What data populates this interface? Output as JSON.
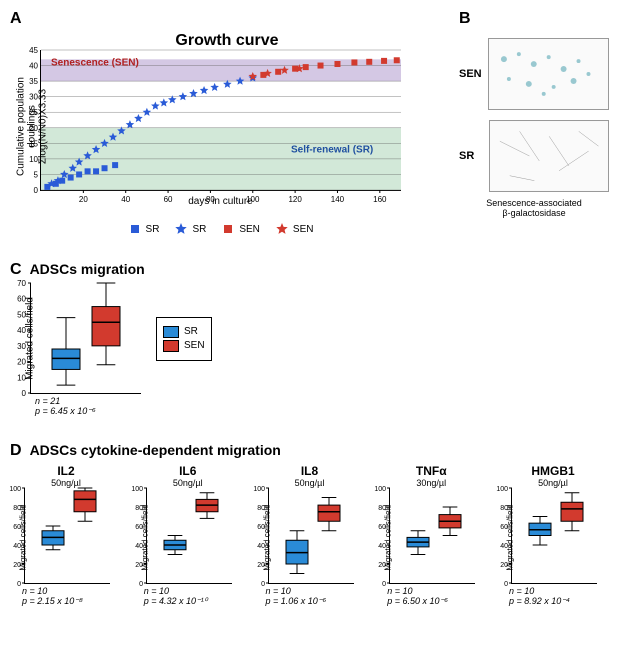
{
  "panelA": {
    "label": "A",
    "title": "Growth curve",
    "ylabel": "Cumulative population doublings\nΣlog(N/N0)X3.33",
    "xlabel": "days in culture",
    "xlim": [
      0,
      170
    ],
    "xtick_step": 20,
    "ylim": [
      0,
      45
    ],
    "ytick_step": 5,
    "sen_band": [
      35,
      42
    ],
    "sen_band_color": "#d4c8e4",
    "sr_band": [
      0,
      20
    ],
    "sr_band_color": "#d2e8d8",
    "sen_label": "Senescence (SEN)",
    "sr_label": "Self-renewal (SR)",
    "gridline_color": "#666666",
    "series": {
      "sr_square": {
        "color": "#2a5bd7",
        "label": "SR",
        "shape": "square",
        "points": [
          [
            3,
            1
          ],
          [
            7,
            2
          ],
          [
            10,
            3
          ],
          [
            14,
            4
          ],
          [
            18,
            5
          ],
          [
            22,
            6
          ],
          [
            26,
            6
          ],
          [
            30,
            7
          ],
          [
            35,
            8
          ]
        ]
      },
      "sr_star": {
        "color": "#2a5bd7",
        "label": "SR",
        "shape": "star",
        "points": [
          [
            5,
            2
          ],
          [
            8,
            3
          ],
          [
            11,
            5
          ],
          [
            15,
            7
          ],
          [
            18,
            9
          ],
          [
            22,
            11
          ],
          [
            26,
            13
          ],
          [
            30,
            15
          ],
          [
            34,
            17
          ],
          [
            38,
            19
          ],
          [
            42,
            21
          ],
          [
            46,
            23
          ],
          [
            50,
            25
          ],
          [
            54,
            27
          ],
          [
            58,
            28
          ],
          [
            62,
            29
          ],
          [
            67,
            30
          ],
          [
            72,
            31
          ],
          [
            77,
            32
          ],
          [
            82,
            33
          ],
          [
            88,
            34
          ],
          [
            94,
            35
          ],
          [
            100,
            36
          ]
        ]
      },
      "sen_square": {
        "color": "#d23a2e",
        "label": "SEN",
        "shape": "square",
        "points": [
          [
            105,
            37
          ],
          [
            112,
            38
          ],
          [
            120,
            39
          ],
          [
            125,
            39.5
          ],
          [
            132,
            40
          ],
          [
            140,
            40.5
          ],
          [
            148,
            41
          ],
          [
            155,
            41.2
          ],
          [
            162,
            41.5
          ],
          [
            168,
            41.7
          ]
        ]
      },
      "sen_star": {
        "color": "#d23a2e",
        "label": "SEN",
        "shape": "star",
        "points": [
          [
            100,
            36.5
          ],
          [
            107,
            37.5
          ],
          [
            115,
            38.5
          ],
          [
            122,
            39
          ]
        ]
      }
    },
    "legend": [
      {
        "shape": "square",
        "color": "#2a5bd7",
        "text": "SR"
      },
      {
        "shape": "star",
        "color": "#2a5bd7",
        "text": "SR"
      },
      {
        "shape": "square",
        "color": "#d23a2e",
        "text": "SEN"
      },
      {
        "shape": "star",
        "color": "#d23a2e",
        "text": "SEN"
      }
    ]
  },
  "panelB": {
    "label": "B",
    "images": [
      {
        "tag": "SEN"
      },
      {
        "tag": "SR"
      }
    ],
    "caption": "Senescence-associated\nβ-galactosidase"
  },
  "panelC": {
    "label": "C",
    "title": "ADSCs migration",
    "ylabel": "Migrated cells/field",
    "ylim": [
      0,
      70
    ],
    "ytick_step": 10,
    "boxes": [
      {
        "name": "SR",
        "color": "#2a8bd7",
        "q1": 15,
        "med": 22,
        "q3": 28,
        "min": 5,
        "max": 48
      },
      {
        "name": "SEN",
        "color": "#d23a2e",
        "q1": 30,
        "med": 45,
        "q3": 55,
        "min": 18,
        "max": 70
      }
    ],
    "legend": [
      {
        "color": "#2a8bd7",
        "text": "SR"
      },
      {
        "color": "#d23a2e",
        "text": "SEN"
      }
    ],
    "n": "n = 21",
    "p": "p = 6.45 x 10⁻⁶"
  },
  "panelD": {
    "label": "D",
    "title": "ADSCs cytokine-dependent migration",
    "ylabel": "Migrated cells/field",
    "ylim": [
      0,
      100
    ],
    "ytick_step": 20,
    "items": [
      {
        "name": "IL2",
        "dose": "50ng/µl",
        "n": "n = 10",
        "p": "p = 2.15 x 10⁻⁸",
        "sr": {
          "q1": 40,
          "med": 48,
          "q3": 55,
          "min": 35,
          "max": 60
        },
        "sen": {
          "q1": 75,
          "med": 88,
          "q3": 97,
          "min": 65,
          "max": 100
        }
      },
      {
        "name": "IL6",
        "dose": "50ng/µl",
        "n": "n = 10",
        "p": "p = 4.32 x 10⁻¹⁰",
        "sr": {
          "q1": 35,
          "med": 40,
          "q3": 45,
          "min": 30,
          "max": 50
        },
        "sen": {
          "q1": 75,
          "med": 82,
          "q3": 88,
          "min": 68,
          "max": 95
        }
      },
      {
        "name": "IL8",
        "dose": "50ng/µl",
        "n": "n = 10",
        "p": "p = 1.06 x 10⁻⁶",
        "sr": {
          "q1": 20,
          "med": 32,
          "q3": 45,
          "min": 10,
          "max": 55
        },
        "sen": {
          "q1": 65,
          "med": 75,
          "q3": 82,
          "min": 55,
          "max": 90
        }
      },
      {
        "name": "TNFα",
        "dose": "30ng/µl",
        "n": "n = 10",
        "p": "p = 6.50 x 10⁻⁶",
        "sr": {
          "q1": 38,
          "med": 43,
          "q3": 48,
          "min": 30,
          "max": 55
        },
        "sen": {
          "q1": 58,
          "med": 65,
          "q3": 72,
          "min": 50,
          "max": 80
        }
      },
      {
        "name": "HMGB1",
        "dose": "50ng/µl",
        "n": "n = 10",
        "p": "p = 8.92 x 10⁻⁴",
        "sr": {
          "q1": 50,
          "med": 56,
          "q3": 63,
          "min": 40,
          "max": 70
        },
        "sen": {
          "q1": 65,
          "med": 78,
          "q3": 85,
          "min": 55,
          "max": 95
        }
      }
    ]
  },
  "colors": {
    "sr": "#2a8bd7",
    "sen": "#d23a2e",
    "sr_marker": "#2a5bd7"
  }
}
